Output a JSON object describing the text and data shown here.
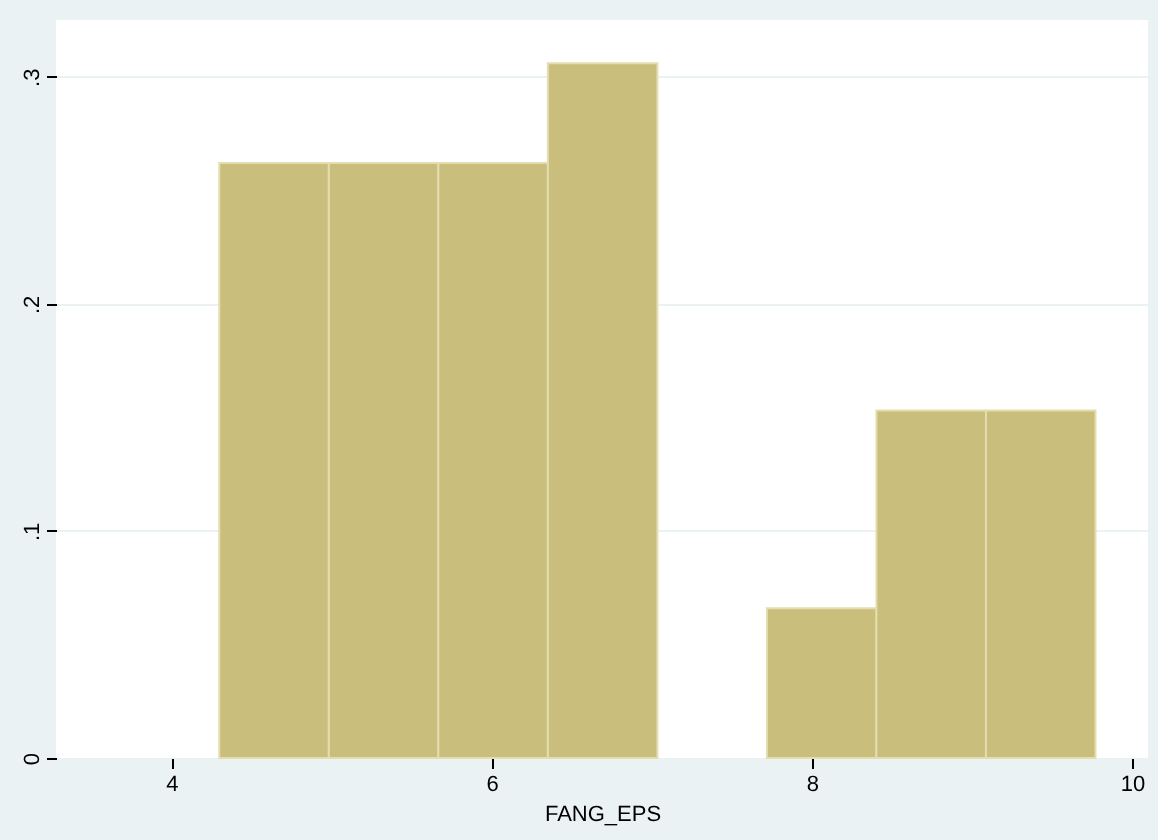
{
  "chart_data": {
    "type": "histogram",
    "xlabel": "FANG_EPS",
    "bins": [
      4.3,
      4.984,
      5.668,
      6.352,
      7.036,
      7.72,
      8.404,
      9.088,
      9.772
    ],
    "values": [
      0.262,
      0.262,
      0.262,
      0.306,
      0,
      0.066,
      0.153,
      0.153
    ],
    "color": "#c9be7b",
    "xlim": [
      3.28,
      10.1
    ],
    "xticks": [
      4,
      6,
      8,
      10
    ],
    "ylim": [
      0,
      0.325
    ],
    "yticks": [
      0,
      {
        "value": 0.1,
        "label": ".1"
      },
      {
        "value": 0.2,
        "label": ".2"
      },
      {
        "value": 0.3,
        "label": ".3"
      }
    ],
    "grid": "y"
  }
}
